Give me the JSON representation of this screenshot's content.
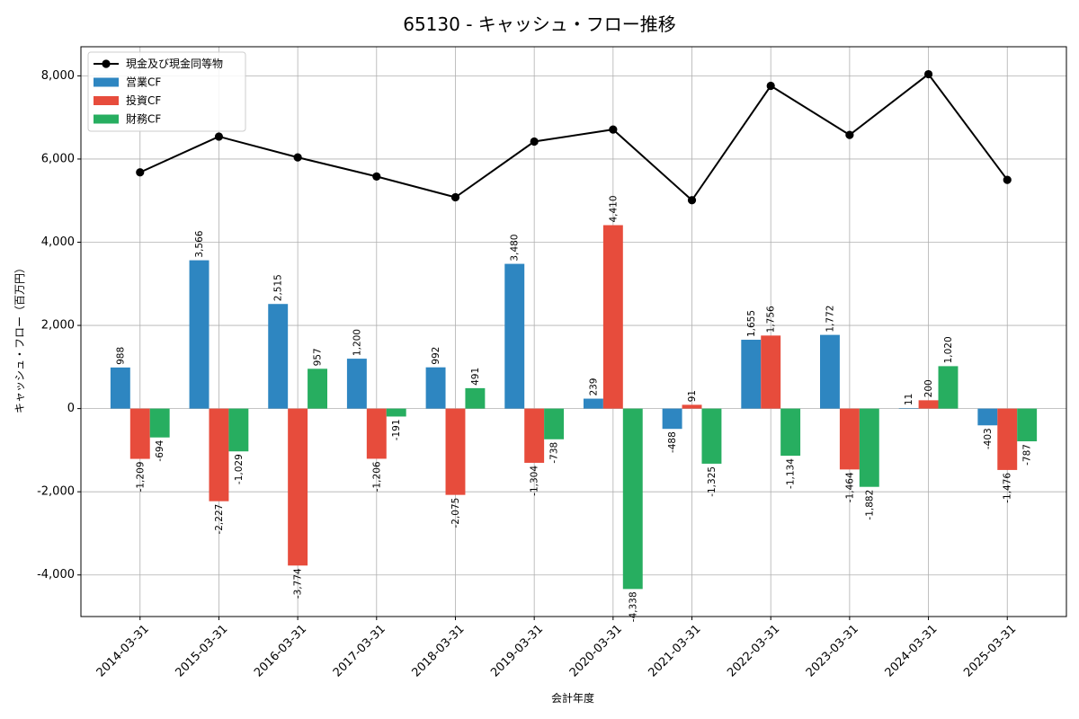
{
  "chart_data": {
    "type": "bar",
    "title": "65130 - キャッシュ・フロー推移",
    "xlabel": "会計年度",
    "ylabel": "キャッシュ・フロー（百万円）",
    "categories": [
      "2014-03-31",
      "2015-03-31",
      "2016-03-31",
      "2017-03-31",
      "2018-03-31",
      "2019-03-31",
      "2020-03-31",
      "2021-03-31",
      "2022-03-31",
      "2023-03-31",
      "2024-03-31",
      "2025-03-31"
    ],
    "ylim": [
      -5000,
      8700
    ],
    "yticks": [
      -4000,
      -2000,
      0,
      2000,
      4000,
      6000,
      8000
    ],
    "ytick_labels": [
      "-4,000",
      "-2,000",
      "0",
      "2,000",
      "4,000",
      "6,000",
      "8,000"
    ],
    "grid": true,
    "legend_position": "top-left",
    "series": [
      {
        "name": "営業CF",
        "kind": "bar",
        "color": "#2e86c1",
        "values": [
          988,
          3566,
          2515,
          1200,
          992,
          3480,
          239,
          -488,
          1655,
          1772,
          11,
          -403
        ],
        "labels": [
          "988",
          "3,566",
          "2,515",
          "1,200",
          "992",
          "3,480",
          "239",
          "-488",
          "1,655",
          "1,772",
          "11",
          "-403"
        ]
      },
      {
        "name": "投資CF",
        "kind": "bar",
        "color": "#e74c3c",
        "values": [
          -1209,
          -2227,
          -3774,
          -1206,
          -2075,
          -1304,
          4410,
          91,
          1756,
          -1464,
          200,
          -1476
        ],
        "labels": [
          "-1,209",
          "-2,227",
          "-3,774",
          "-1,206",
          "-2,075",
          "-1,304",
          "4,410",
          "91",
          "1,756",
          "-1,464",
          "200",
          "-1,476"
        ]
      },
      {
        "name": "財務CF",
        "kind": "bar",
        "color": "#27ae60",
        "values": [
          -694,
          -1029,
          957,
          -191,
          491,
          -738,
          -4338,
          -1325,
          -1134,
          -1882,
          1020,
          -787
        ],
        "labels": [
          "-694",
          "-1,029",
          "957",
          "-191",
          "491",
          "-738",
          "-4,338",
          "-1,325",
          "-1,134",
          "-1,882",
          "1,020",
          "-787"
        ]
      },
      {
        "name": "現金及び現金同等物",
        "kind": "line",
        "color": "#000000",
        "values": [
          5680,
          6540,
          6040,
          5580,
          5080,
          6420,
          6710,
          5010,
          7760,
          6580,
          8040,
          5500
        ]
      }
    ]
  }
}
